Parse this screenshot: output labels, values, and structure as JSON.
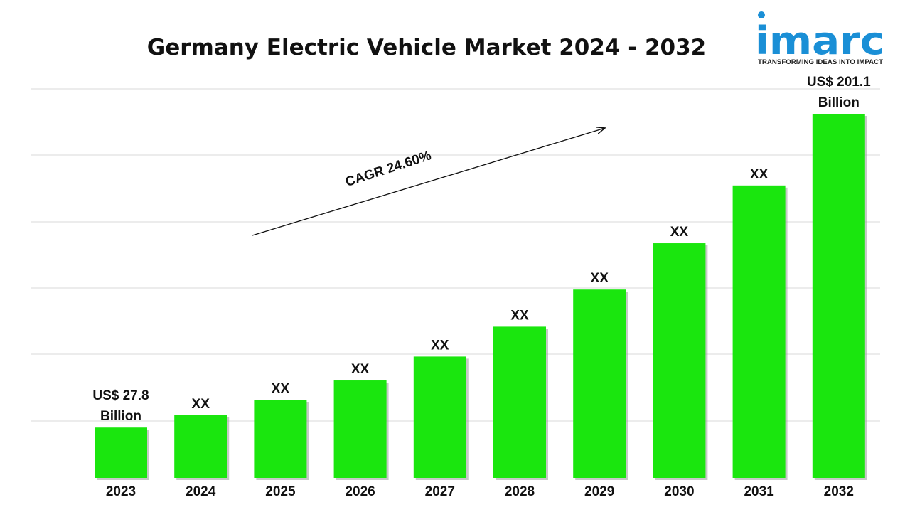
{
  "chart_data": {
    "type": "bar",
    "title": "Germany Electric Vehicle Market 2024 - 2032",
    "xlabel": "",
    "ylabel": "",
    "categories": [
      "2023",
      "2024",
      "2025",
      "2026",
      "2027",
      "2028",
      "2029",
      "2030",
      "2031",
      "2032"
    ],
    "series": [
      {
        "values": [
          27.8,
          34.6,
          43.1,
          53.8,
          67.0,
          83.5,
          104.0,
          129.6,
          161.5,
          201.1
        ]
      }
    ],
    "data_labels": [
      [
        "US$ 27.8",
        "Billion"
      ],
      [
        "XX"
      ],
      [
        "XX"
      ],
      [
        "XX"
      ],
      [
        "XX"
      ],
      [
        "XX"
      ],
      [
        "XX"
      ],
      [
        "XX"
      ],
      [
        "XX"
      ],
      [
        "US$ 201.1",
        "Billion"
      ]
    ],
    "annotation": "CAGR 24.60%",
    "grid": true,
    "legend": "none",
    "bar_color": "#1ae60e"
  },
  "logo": {
    "name": "imarc",
    "tagline": "TRANSFORMING IDEAS INTO IMPACT",
    "color": "#1a8fd6"
  }
}
